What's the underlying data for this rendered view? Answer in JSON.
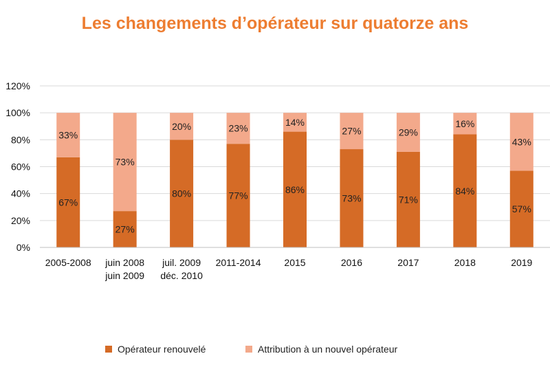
{
  "chart_data": {
    "type": "bar",
    "stacked": true,
    "title": "Les changements d’opérateur sur quatorze ans",
    "categories": [
      [
        "2005-2008"
      ],
      [
        "juin 2008",
        "juin 2009"
      ],
      [
        "juil. 2009",
        "déc. 2010"
      ],
      [
        "2011-2014"
      ],
      [
        "2015"
      ],
      [
        "2016"
      ],
      [
        "2017"
      ],
      [
        "2018"
      ],
      [
        "2019"
      ]
    ],
    "series": [
      {
        "name": "Opérateur renouvelé",
        "color": "#D56B26",
        "values": [
          67,
          27,
          80,
          77,
          86,
          73,
          71,
          84,
          57
        ],
        "labels": [
          "67%",
          "27%",
          "80%",
          "77%",
          "86%",
          "73%",
          "71%",
          "84%",
          "57%"
        ]
      },
      {
        "name": "Attribution à un nouvel opérateur",
        "color": "#F3A98B",
        "values": [
          33,
          73,
          20,
          23,
          14,
          27,
          29,
          16,
          43
        ],
        "labels": [
          "33%",
          "73%",
          "20%",
          "23%",
          "14%",
          "27%",
          "29%",
          "16%",
          "43%"
        ]
      }
    ],
    "ylim": [
      0,
      120
    ],
    "yticks": [
      "0%",
      "20%",
      "40%",
      "60%",
      "80%",
      "100%",
      "120%"
    ],
    "ytick_values": [
      0,
      20,
      40,
      60,
      80,
      100,
      120
    ],
    "grid": true,
    "legend_position": "bottom",
    "title_color": "#ED7D31"
  }
}
